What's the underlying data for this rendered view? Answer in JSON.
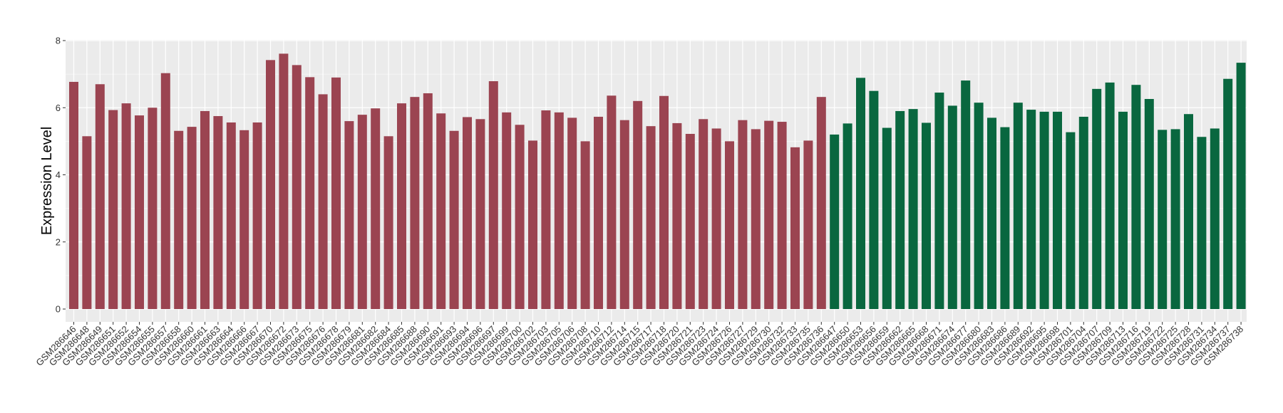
{
  "chart_data": {
    "type": "bar",
    "title": "",
    "xlabel": "",
    "ylabel": "Expression Level",
    "ylim": [
      0,
      8
    ],
    "yticks": [
      0,
      2,
      4,
      6,
      8
    ],
    "grid": true,
    "legend": "none",
    "colors": {
      "group1": "#9b4451",
      "group2": "#09673f",
      "panel": "#ebebeb",
      "grid": "#ffffff"
    },
    "categories": [
      "GSM286646",
      "GSM286648",
      "GSM286649",
      "GSM286651",
      "GSM286652",
      "GSM286654",
      "GSM286655",
      "GSM286657",
      "GSM286658",
      "GSM286660",
      "GSM286661",
      "GSM286663",
      "GSM286664",
      "GSM286666",
      "GSM286667",
      "GSM286670",
      "GSM286672",
      "GSM286673",
      "GSM286675",
      "GSM286676",
      "GSM286678",
      "GSM286679",
      "GSM286681",
      "GSM286682",
      "GSM286684",
      "GSM286685",
      "GSM286688",
      "GSM286690",
      "GSM286691",
      "GSM286693",
      "GSM286694",
      "GSM286696",
      "GSM286697",
      "GSM286699",
      "GSM286700",
      "GSM286702",
      "GSM286703",
      "GSM286705",
      "GSM286706",
      "GSM286708",
      "GSM286710",
      "GSM286712",
      "GSM286714",
      "GSM286715",
      "GSM286717",
      "GSM286718",
      "GSM286720",
      "GSM286721",
      "GSM286723",
      "GSM286724",
      "GSM286726",
      "GSM286727",
      "GSM286729",
      "GSM286730",
      "GSM286732",
      "GSM286733",
      "GSM286735",
      "GSM286736",
      "GSM286647",
      "GSM286650",
      "GSM286653",
      "GSM286656",
      "GSM286659",
      "GSM286662",
      "GSM286665",
      "GSM286668",
      "GSM286671",
      "GSM286674",
      "GSM286677",
      "GSM286680",
      "GSM286683",
      "GSM286686",
      "GSM286689",
      "GSM286692",
      "GSM286695",
      "GSM286698",
      "GSM286701",
      "GSM286704",
      "GSM286707",
      "GSM286709",
      "GSM286713",
      "GSM286716",
      "GSM286719",
      "GSM286722",
      "GSM286725",
      "GSM286728",
      "GSM286731",
      "GSM286734",
      "GSM286737",
      "GSM286738"
    ],
    "values": [
      6.77,
      5.15,
      6.7,
      5.93,
      6.13,
      5.77,
      6.0,
      7.03,
      5.31,
      5.43,
      5.9,
      5.75,
      5.56,
      5.33,
      5.56,
      7.42,
      7.61,
      7.27,
      6.91,
      6.4,
      6.9,
      5.6,
      5.79,
      5.98,
      5.15,
      6.13,
      6.32,
      6.43,
      5.83,
      5.31,
      5.72,
      5.66,
      6.79,
      5.86,
      5.49,
      5.02,
      5.92,
      5.86,
      5.7,
      5.0,
      5.73,
      6.36,
      5.63,
      6.2,
      5.45,
      6.35,
      5.54,
      5.22,
      5.66,
      5.38,
      5.0,
      5.63,
      5.36,
      5.61,
      5.58,
      4.82,
      5.02,
      6.32,
      5.2,
      5.53,
      6.89,
      6.5,
      5.4,
      5.9,
      5.96,
      5.55,
      6.45,
      6.06,
      6.81,
      6.15,
      5.7,
      5.42,
      6.15,
      5.94,
      5.88,
      5.88,
      5.27,
      5.73,
      6.56,
      6.75,
      5.88,
      6.68,
      6.26,
      5.34,
      5.36,
      5.81,
      5.13,
      5.38,
      6.86,
      7.34
    ],
    "groups_count": [
      58,
      32
    ]
  }
}
